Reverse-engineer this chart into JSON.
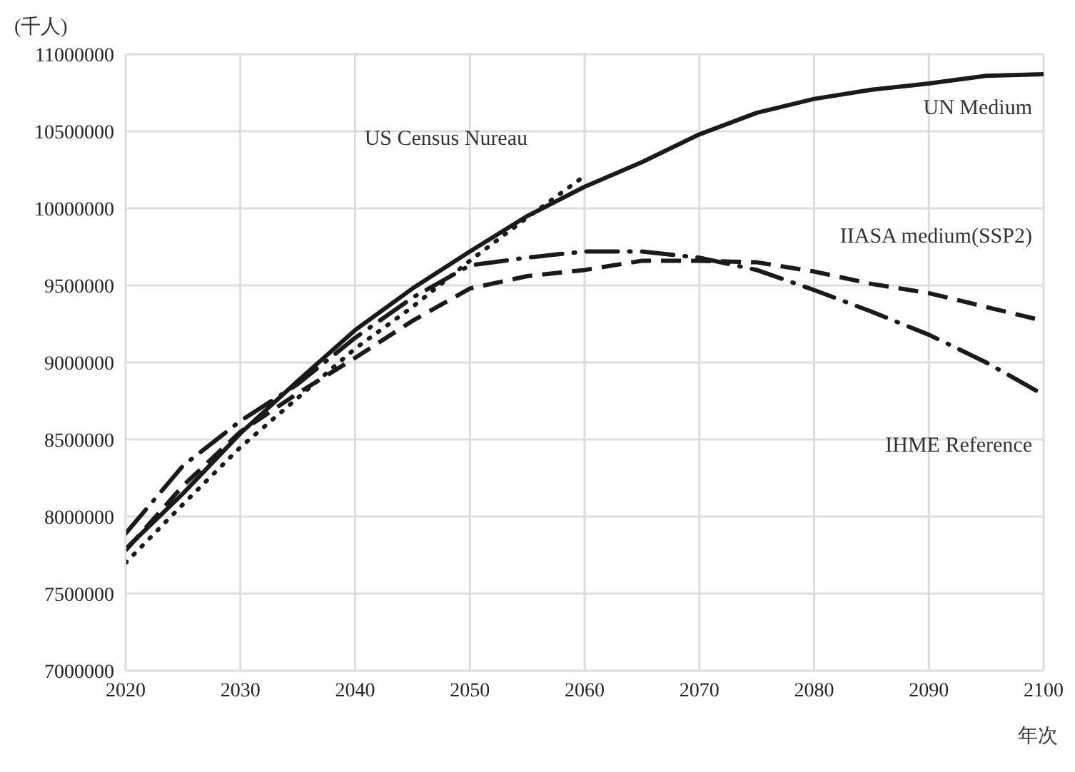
{
  "chart_data": {
    "type": "line",
    "ylabel": "(千人)",
    "xlabel": "年次",
    "x": [
      2020,
      2025,
      2030,
      2035,
      2040,
      2045,
      2050,
      2055,
      2060,
      2065,
      2070,
      2075,
      2080,
      2085,
      2090,
      2095,
      2100
    ],
    "series": [
      {
        "name": "UN Medium",
        "color": "#1a1a1a",
        "line_style": "solid",
        "values": [
          7790000,
          8150000,
          8540000,
          8880000,
          9210000,
          9480000,
          9720000,
          9950000,
          10140000,
          10300000,
          10480000,
          10620000,
          10710000,
          10770000,
          10810000,
          10860000,
          10870000
        ]
      },
      {
        "name": "US Census Nureau",
        "color": "#1a1a1a",
        "line_style": "dotted",
        "values": [
          7700000,
          8080000,
          8450000,
          8770000,
          9090000,
          9360000,
          9660000,
          9940000,
          10210000,
          null,
          null,
          null,
          null,
          null,
          null,
          null,
          null
        ]
      },
      {
        "name": "IIASA medium(SSP2)",
        "color": "#1a1a1a",
        "line_style": "dashed",
        "values": [
          7780000,
          8200000,
          8550000,
          8800000,
          9030000,
          9270000,
          9480000,
          9560000,
          9600000,
          9660000,
          9660000,
          9650000,
          9590000,
          9510000,
          9450000,
          9360000,
          9270000
        ]
      },
      {
        "name": "IHME Reference",
        "color": "#1a1a1a",
        "line_style": "dashdot",
        "values": [
          7890000,
          8330000,
          8620000,
          8860000,
          9160000,
          9420000,
          9630000,
          9680000,
          9720000,
          9720000,
          9680000,
          9600000,
          9470000,
          9330000,
          9180000,
          9000000,
          8790000
        ]
      }
    ],
    "xlim": [
      2020,
      2100
    ],
    "xticks": [
      2020,
      2030,
      2040,
      2050,
      2060,
      2070,
      2080,
      2090,
      2100
    ],
    "ylim": [
      7000000,
      11000000
    ],
    "yticks": [
      7000000,
      7500000,
      8000000,
      8500000,
      9000000,
      9500000,
      10000000,
      10500000,
      11000000
    ],
    "grid": true,
    "legend": false,
    "marker": "none"
  }
}
